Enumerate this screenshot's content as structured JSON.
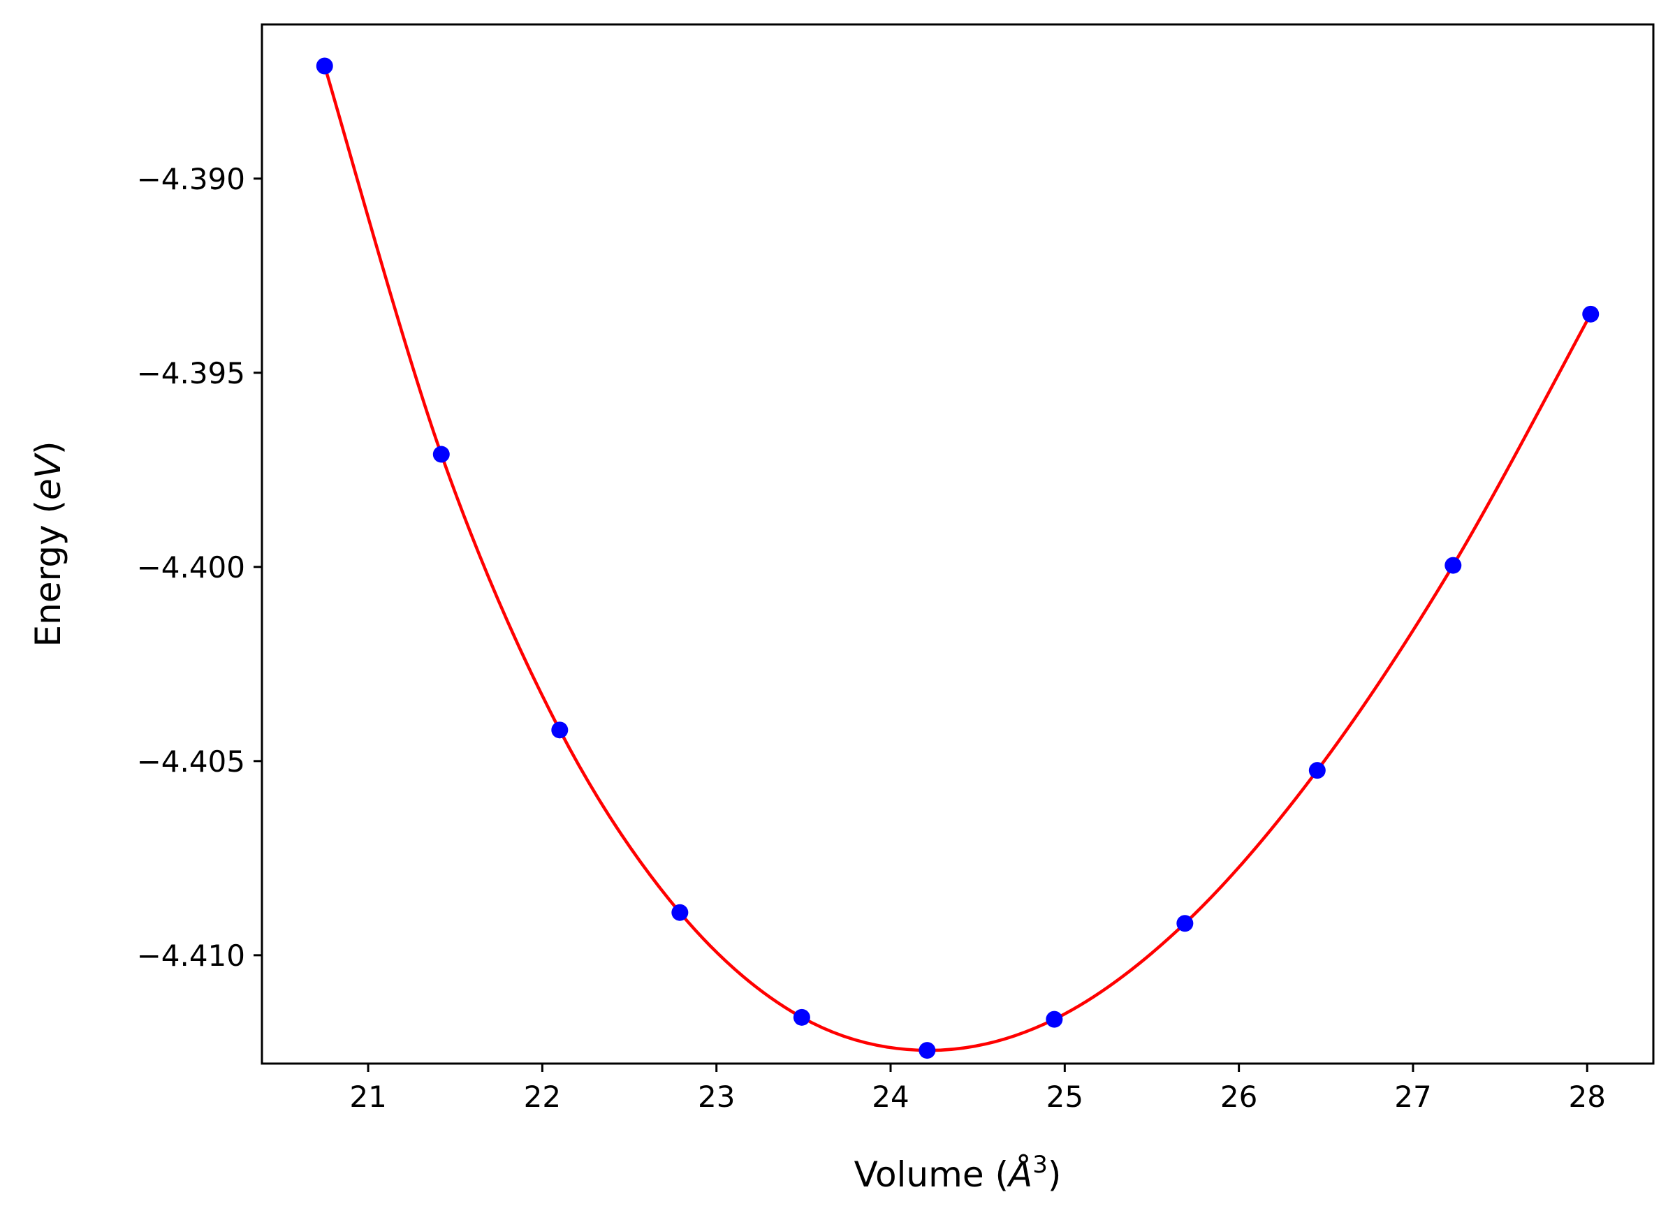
{
  "chart_data": {
    "type": "scatter",
    "title": "",
    "xlabel": {
      "prefix": "Volume (",
      "symbol": "Å",
      "sup": "3",
      "suffix": ")"
    },
    "ylabel": {
      "prefix": "Energy (",
      "unit": "eV",
      "suffix": ")"
    },
    "xlim": [
      20.39,
      28.38
    ],
    "ylim": [
      -4.41279,
      -4.38603
    ],
    "xticks": [
      21,
      22,
      23,
      24,
      25,
      26,
      27,
      28
    ],
    "xtick_labels": [
      "21",
      "22",
      "23",
      "24",
      "25",
      "26",
      "27",
      "28"
    ],
    "yticks": [
      -4.39,
      -4.395,
      -4.4,
      -4.405,
      -4.41
    ],
    "ytick_labels": [
      "−4.390",
      "−4.395",
      "−4.400",
      "−4.405",
      "−4.410"
    ],
    "grid": false,
    "series": [
      {
        "kind": "points",
        "color": "#0000ff",
        "x": [
          20.75,
          21.42,
          22.1,
          22.79,
          23.49,
          24.21,
          24.94,
          25.69,
          26.45,
          27.23,
          28.02
        ],
        "y": [
          -4.3871,
          -4.3971,
          -4.4042,
          -4.4089,
          -4.4116,
          -4.41245,
          -4.41165,
          -4.40918,
          -4.40524,
          -4.39996,
          -4.39349
        ]
      },
      {
        "kind": "fit-curve",
        "color": "#ff0000",
        "x": [
          20.75,
          21.42,
          22.1,
          22.79,
          23.49,
          24.21,
          24.94,
          25.69,
          26.45,
          27.23,
          28.02
        ],
        "y": [
          -4.3871,
          -4.3971,
          -4.4042,
          -4.4089,
          -4.4116,
          -4.41245,
          -4.41165,
          -4.40918,
          -4.40524,
          -4.39996,
          -4.39349
        ]
      }
    ]
  }
}
